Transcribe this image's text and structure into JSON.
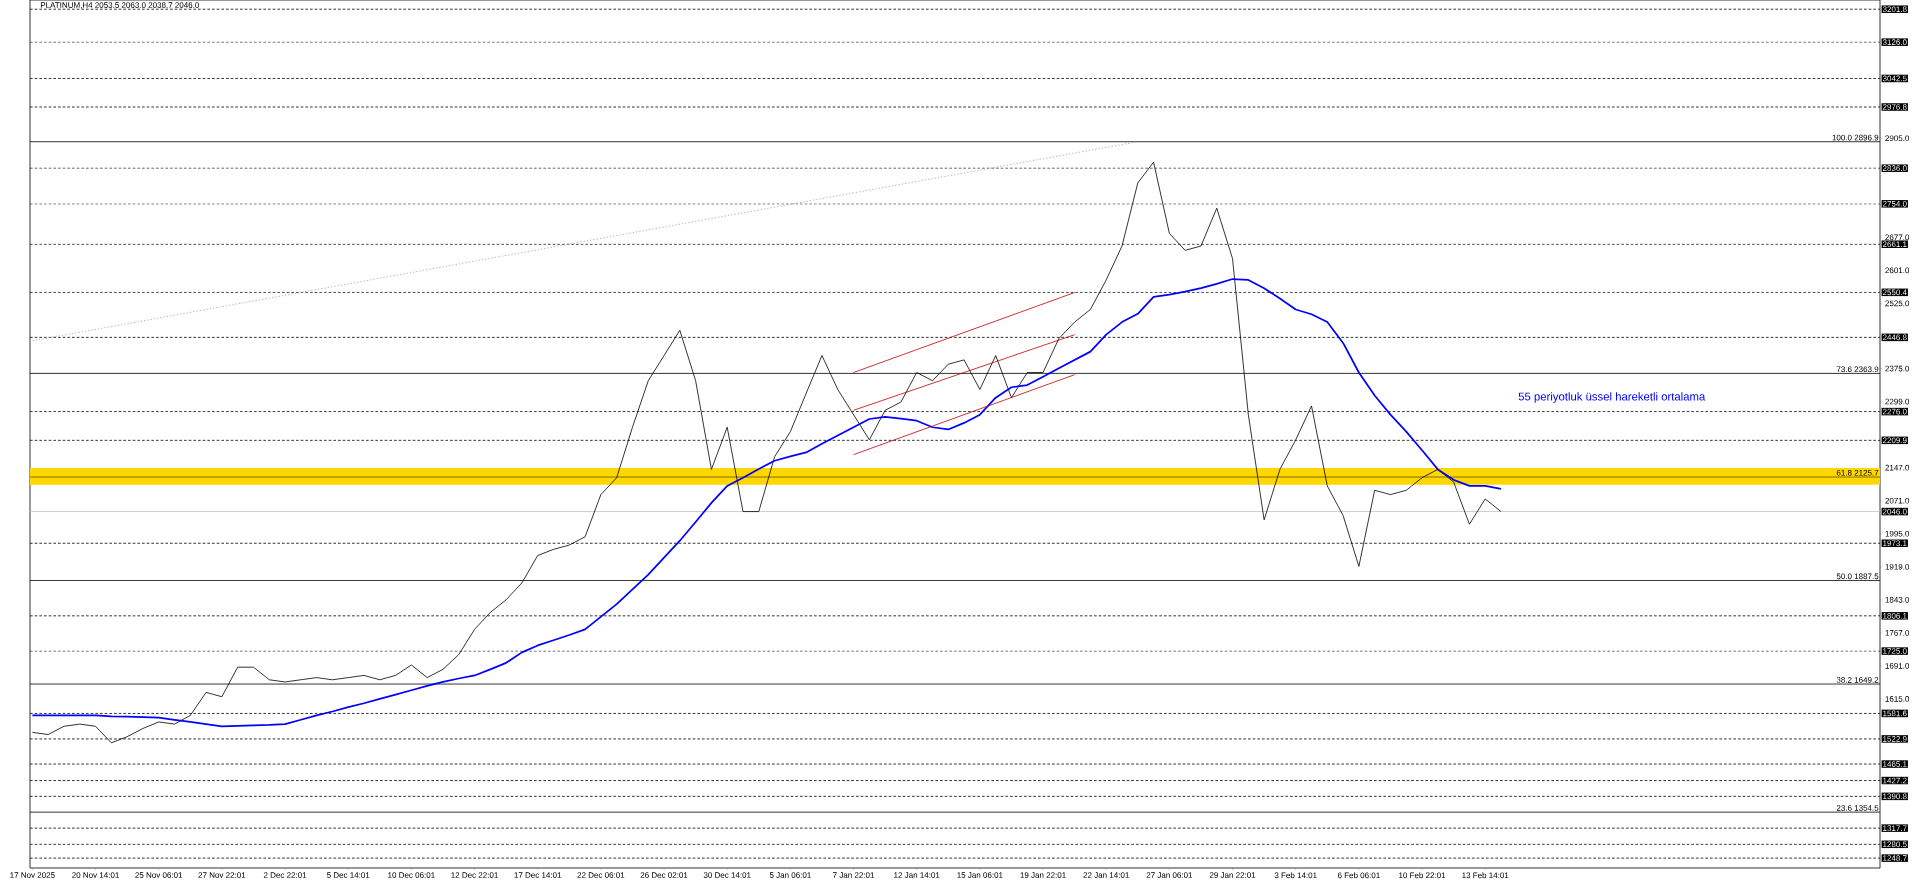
{
  "chart_data": {
    "type": "line",
    "title": "PLATINUM,H4 2053.5 2063.0 2038.7 2046.0",
    "categories": [
      "17 Nov 2025",
      null,
      null,
      null,
      "20 Nov 14:01",
      null,
      null,
      null,
      "25 Nov 06:01",
      null,
      null,
      null,
      "27 Nov 22:01",
      null,
      null,
      null,
      "2 Dec 22:01",
      null,
      null,
      null,
      "5 Dec 14:01",
      null,
      null,
      null,
      "10 Dec 06:01",
      null,
      null,
      null,
      "12 Dec 22:01",
      null,
      null,
      null,
      "17 Dec 14:01",
      null,
      null,
      null,
      "22 Dec 06:01",
      null,
      null,
      null,
      "26 Dec 02:01",
      null,
      null,
      null,
      "30 Dec 14:01",
      null,
      null,
      null,
      "5 Jan 06:01",
      null,
      null,
      null,
      "7 Jan 22:01",
      null,
      null,
      null,
      "12 Jan 14:01",
      null,
      null,
      null,
      "15 Jan 06:01",
      null,
      null,
      null,
      "19 Jan 22:01",
      null,
      null,
      null,
      "22 Jan 14:01",
      null,
      null,
      null,
      "27 Jan 06:01",
      null,
      null,
      null,
      "29 Jan 22:01",
      null,
      null,
      null,
      "3 Feb 14:01",
      null,
      null,
      null,
      "6 Feb 06:01",
      null,
      null,
      null,
      "10 Feb 22:01",
      null,
      null,
      null,
      "13 Feb 14:01",
      null,
      null,
      null,
      null,
      null,
      null,
      null,
      null,
      null,
      null,
      null,
      null,
      null,
      null,
      null,
      null,
      null,
      null,
      null,
      null,
      null,
      null,
      null,
      null,
      null
    ],
    "series": [
      {
        "color": "#000000",
        "values": [
          1538,
          1533,
          1552,
          1557,
          1552,
          1514,
          1528,
          1547,
          1562,
          1557,
          1577,
          1630,
          1620,
          1688,
          1688,
          1659,
          1654,
          1659,
          1664,
          1659,
          1664,
          1669,
          1659,
          1669,
          1693,
          1664,
          1683,
          1717,
          1775,
          1814,
          1843,
          1882,
          1945,
          1959,
          1969,
          1988,
          2085,
          2124,
          2240,
          2347,
          2405,
          2463,
          2347,
          2143,
          2240,
          2046,
          2046,
          2172,
          2230,
          2318,
          2405,
          2327,
          2269,
          2211,
          2279,
          2298,
          2366,
          2347,
          2385,
          2395,
          2327,
          2405,
          2308,
          2366,
          2366,
          2444,
          2482,
          2511,
          2579,
          2657,
          2802,
          2850,
          2686,
          2647,
          2657,
          2744,
          2628,
          2269,
          2027,
          2143,
          2211,
          2289,
          2105,
          2037,
          1920,
          2095,
          2085,
          2095,
          2124,
          2143,
          2114,
          2017,
          2075,
          2046,
          null,
          null,
          null,
          null,
          null,
          null,
          null,
          null,
          null,
          null,
          null,
          null,
          null,
          null,
          null,
          null,
          null,
          null,
          null,
          null,
          null,
          null,
          null,
          null
        ]
      },
      {
        "name": "55 periyotluk üssel hareketli ortalama",
        "color": "#0000ff",
        "values": [
          1577,
          1577,
          1577,
          1577,
          1577,
          1575,
          1574,
          1573,
          1572,
          1567,
          1562,
          1557,
          1552,
          1553,
          1554,
          1555,
          1557,
          1567,
          1577,
          1586,
          1596,
          1605,
          1615,
          1625,
          1635,
          1645,
          1654,
          1662,
          1669,
          1683,
          1698,
          1722,
          1738,
          1750,
          1762,
          1775,
          1804,
          1833,
          1867,
          1901,
          1940,
          1979,
          2022,
          2066,
          2105,
          2124,
          2144,
          2163,
          2173,
          2182,
          2202,
          2221,
          2240,
          2259,
          2264,
          2260,
          2255,
          2240,
          2235,
          2250,
          2269,
          2308,
          2332,
          2337,
          2356,
          2376,
          2395,
          2414,
          2453,
          2482,
          2501,
          2540,
          2545,
          2552,
          2560,
          2570,
          2581,
          2579,
          2560,
          2536,
          2511,
          2500,
          2482,
          2434,
          2366,
          2313,
          2269,
          2230,
          2187,
          2143,
          2119,
          2105,
          2105,
          2098,
          null,
          null,
          null,
          null,
          null,
          null,
          null,
          null,
          null,
          null,
          null,
          null,
          null,
          null,
          null,
          null,
          null,
          null,
          null,
          null,
          null,
          null,
          null,
          null
        ]
      },
      {
        "color": "#c00000",
        "values": [
          null,
          null,
          null,
          null,
          null,
          null,
          null,
          null,
          null,
          null,
          null,
          null,
          null,
          null,
          null,
          null,
          null,
          null,
          null,
          null,
          null,
          null,
          null,
          null,
          null,
          null,
          null,
          null,
          null,
          null,
          null,
          null,
          null,
          null,
          null,
          null,
          null,
          null,
          null,
          null,
          null,
          null,
          null,
          null,
          null,
          null,
          null,
          null,
          null,
          null,
          null,
          null,
          2366,
          null,
          null,
          null,
          null,
          null,
          null,
          null,
          null,
          null,
          null,
          null,
          null,
          null,
          2550,
          null,
          null,
          null,
          null,
          null,
          null,
          null,
          null,
          null,
          null,
          null,
          null,
          null,
          null,
          null,
          null,
          null,
          null,
          null,
          null,
          null,
          null,
          null,
          null,
          null,
          null,
          null,
          null,
          null,
          null,
          null,
          null,
          null,
          null,
          null,
          null,
          null,
          null,
          null,
          null,
          null,
          null,
          null,
          null,
          null,
          null,
          null,
          null,
          null,
          null,
          null
        ]
      },
      {
        "color": "#c00000",
        "values": [
          null,
          null,
          null,
          null,
          null,
          null,
          null,
          null,
          null,
          null,
          null,
          null,
          null,
          null,
          null,
          null,
          null,
          null,
          null,
          null,
          null,
          null,
          null,
          null,
          null,
          null,
          null,
          null,
          null,
          null,
          null,
          null,
          null,
          null,
          null,
          null,
          null,
          null,
          null,
          null,
          null,
          null,
          null,
          null,
          null,
          null,
          null,
          null,
          null,
          null,
          null,
          null,
          2279,
          null,
          null,
          null,
          null,
          null,
          null,
          null,
          null,
          null,
          null,
          null,
          null,
          null,
          2453,
          null,
          null,
          null,
          null,
          null,
          null,
          null,
          null,
          null,
          null,
          null,
          null,
          null,
          null,
          null,
          null,
          null,
          null,
          null,
          null,
          null,
          null,
          null,
          null,
          null,
          null,
          null,
          null,
          null,
          null,
          null,
          null,
          null,
          null,
          null,
          null,
          null,
          null,
          null,
          null,
          null,
          null,
          null,
          null,
          null,
          null,
          null,
          null,
          null,
          null,
          null
        ]
      },
      {
        "color": "#c00000",
        "values": [
          null,
          null,
          null,
          null,
          null,
          null,
          null,
          null,
          null,
          null,
          null,
          null,
          null,
          null,
          null,
          null,
          null,
          null,
          null,
          null,
          null,
          null,
          null,
          null,
          null,
          null,
          null,
          null,
          null,
          null,
          null,
          null,
          null,
          null,
          null,
          null,
          null,
          null,
          null,
          null,
          null,
          null,
          null,
          null,
          null,
          null,
          null,
          null,
          null,
          null,
          null,
          null,
          2177,
          null,
          null,
          null,
          null,
          null,
          null,
          null,
          null,
          null,
          null,
          null,
          null,
          null,
          2361,
          null,
          null,
          null,
          null,
          null,
          null,
          null,
          null,
          null,
          null,
          null,
          null,
          null,
          null,
          null,
          null,
          null,
          null,
          null,
          null,
          null,
          null,
          null,
          null,
          null,
          null,
          null,
          null,
          null,
          null,
          null,
          null,
          null,
          null,
          null,
          null,
          null,
          null,
          null,
          null,
          null,
          null,
          null,
          null,
          null,
          null,
          null,
          null,
          null,
          null,
          null
        ]
      },
      {
        "color": "#a0a0a0",
        "line_style": "dotted",
        "values": [
          2439,
          null,
          null,
          null,
          null,
          null,
          null,
          null,
          null,
          null,
          null,
          null,
          null,
          null,
          null,
          null,
          null,
          null,
          null,
          null,
          null,
          null,
          null,
          null,
          null,
          null,
          null,
          null,
          null,
          null,
          null,
          null,
          null,
          null,
          null,
          null,
          null,
          null,
          null,
          null,
          null,
          null,
          null,
          null,
          null,
          null,
          null,
          null,
          null,
          null,
          null,
          null,
          null,
          null,
          null,
          null,
          null,
          null,
          null,
          null,
          null,
          null,
          null,
          null,
          null,
          null,
          null,
          null,
          null,
          null,
          2897,
          null,
          null,
          null,
          null,
          null,
          null,
          null,
          null,
          null,
          null,
          null,
          null,
          null,
          null,
          null,
          null,
          null,
          null,
          null,
          null,
          null,
          null,
          null,
          null,
          null,
          null,
          null,
          null,
          null,
          null,
          null,
          null,
          null,
          null,
          null,
          null,
          null,
          null,
          null,
          null,
          null,
          null,
          null,
          null,
          null,
          null,
          null
        ]
      }
    ],
    "ylim": [
      1226,
      3223
    ],
    "yticks": [
      {
        "value": 1615,
        "label": "1615.0"
      },
      {
        "value": 1691,
        "label": "1691.0"
      },
      {
        "value": 1767,
        "label": "1767.0"
      },
      {
        "value": 1843,
        "label": "1843.0"
      },
      {
        "value": 1919,
        "label": "1919.0"
      },
      {
        "value": 1995,
        "label": "1995.0"
      },
      {
        "value": 2071,
        "label": "2071.0"
      },
      {
        "value": 2147,
        "label": "2147.0"
      },
      {
        "value": 2299,
        "label": "2299.0"
      },
      {
        "value": 2375,
        "label": "2375.0"
      },
      {
        "value": 2525,
        "label": "2525.0"
      },
      {
        "value": 2601,
        "label": "2601.0"
      },
      {
        "value": 2677,
        "label": "2677.0"
      },
      {
        "value": 2905,
        "label": "2905.0"
      }
    ],
    "bands": [
      {
        "axis": "y",
        "from": 2108,
        "to": 2146,
        "color": "#ffd700"
      }
    ],
    "ref_lines": [
      {
        "axis": "y",
        "value": 3201.8,
        "label": "3201.8",
        "line_style": "dashed"
      },
      {
        "axis": "y",
        "value": 3126.0,
        "label": "3126.0",
        "line_style": "dashed"
      },
      {
        "axis": "y",
        "value": 3042.5,
        "label": "3042.5",
        "line_style": "dashed"
      },
      {
        "axis": "y",
        "value": 2976.8,
        "label": "2976.8",
        "line_style": "dashed"
      },
      {
        "axis": "y",
        "value": 2836.0,
        "label": "2836.0",
        "line_style": "dashed"
      },
      {
        "axis": "y",
        "value": 2754.0,
        "label": "2754.0",
        "line_style": "dashed"
      },
      {
        "axis": "y",
        "value": 2661.1,
        "label": "2661.1",
        "line_style": "dashed"
      },
      {
        "axis": "y",
        "value": 2550.4,
        "label": "2550.4",
        "line_style": "dashed"
      },
      {
        "axis": "y",
        "value": 2446.8,
        "label": "2446.8",
        "line_style": "dashed"
      },
      {
        "axis": "y",
        "value": 2276.0,
        "label": "2276.0",
        "line_style": "dashed"
      },
      {
        "axis": "y",
        "value": 2209.9,
        "label": "2209.9",
        "line_style": "dashed"
      },
      {
        "axis": "y",
        "value": 1973.1,
        "label": "1973.1",
        "line_style": "dashed"
      },
      {
        "axis": "y",
        "value": 1806.1,
        "label": "1806.1",
        "line_style": "dashed"
      },
      {
        "axis": "y",
        "value": 1725.0,
        "label": "1725.0",
        "line_style": "dashed"
      },
      {
        "axis": "y",
        "value": 1581.6,
        "label": "1581.6",
        "line_style": "dashed"
      },
      {
        "axis": "y",
        "value": 1522.9,
        "label": "1522.9",
        "line_style": "dashed"
      },
      {
        "axis": "y",
        "value": 1465.1,
        "label": "1465.1",
        "line_style": "dashed"
      },
      {
        "axis": "y",
        "value": 1427.2,
        "label": "1427.2",
        "line_style": "dashed"
      },
      {
        "axis": "y",
        "value": 1390.8,
        "label": "1390.8",
        "line_style": "dashed"
      },
      {
        "axis": "y",
        "value": 1317.7,
        "label": "1317.7",
        "line_style": "dashed"
      },
      {
        "axis": "y",
        "value": 1280.5,
        "label": "1280.5",
        "line_style": "dashed"
      },
      {
        "axis": "y",
        "value": 1248.7,
        "label": "1248.7",
        "line_style": "dashed"
      },
      {
        "axis": "y",
        "value": 2896.9,
        "label": "100.0 2896.9"
      },
      {
        "axis": "y",
        "value": 2363.9,
        "label": "73.6 2363.9"
      },
      {
        "axis": "y",
        "value": 2125.7,
        "label": "61.8 2125.7"
      },
      {
        "axis": "y",
        "value": 1887.5,
        "label": "50.0 1887.5"
      },
      {
        "axis": "y",
        "value": 1649.2,
        "label": "38.2 1649.2"
      },
      {
        "axis": "y",
        "value": 1354.5,
        "label": "23.6 1354.5"
      },
      {
        "axis": "y",
        "value": 2046.0,
        "label": "2046.0",
        "color": "#c0c0c0"
      }
    ]
  }
}
